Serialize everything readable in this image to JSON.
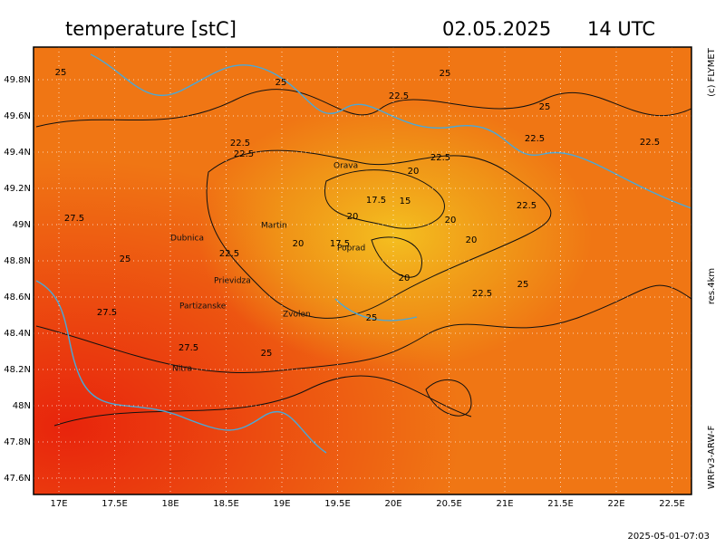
{
  "header": {
    "title": "temperature [stC]",
    "date": "02.05.2025",
    "time": "14 UTC"
  },
  "side": {
    "credit": "(c) FLYMET",
    "resolution": "res.4km",
    "model": "WRFv3-ARW-F"
  },
  "footer": {
    "timestamp": "2025-05-01-07:03"
  },
  "lon_labels": [
    "17E",
    "17.5E",
    "18E",
    "18.5E",
    "19E",
    "19.5E",
    "20E",
    "20.5E",
    "21E",
    "21.5E",
    "22E",
    "22.5E"
  ],
  "lat_labels": [
    "49.8N",
    "49.6N",
    "49.4N",
    "49.2N",
    "49N",
    "48.8N",
    "48.6N",
    "48.4N",
    "48.2N",
    "48N",
    "47.8N",
    "47.6N"
  ],
  "places": [
    "Orava",
    "Martin",
    "Dubnica",
    "Poprad",
    "Prievidza",
    "Partizanske",
    "Zvolen",
    "Nitra"
  ],
  "contour_labels": [
    "25",
    "25",
    "25",
    "22.5",
    "25",
    "22.5",
    "22.5",
    "22.5",
    "22.5",
    "22.5",
    "20",
    "17.5",
    "15",
    "22.5",
    "20",
    "27.5",
    "20",
    "20",
    "17.5",
    "20",
    "22.5",
    "25",
    "20",
    "25",
    "22.5",
    "27.5",
    "25",
    "27.5",
    "25"
  ]
}
